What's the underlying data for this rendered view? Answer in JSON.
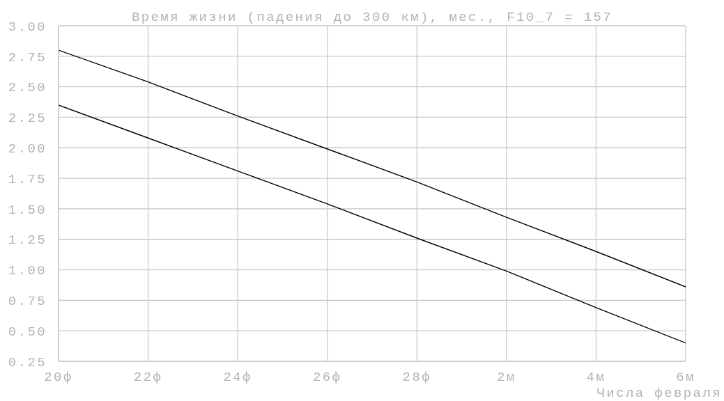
{
  "chart_data": {
    "type": "line",
    "title": "Время жизни (падения до 300 км), мес., F10_7 = 157",
    "xlabel": "Числа февраля",
    "categories": [
      "20ф",
      "22ф",
      "24ф",
      "26ф",
      "28ф",
      "2м",
      "4м",
      "6м"
    ],
    "series": [
      {
        "color": "#000000",
        "values": [
          2.8,
          2.54,
          2.26,
          1.99,
          1.72,
          1.43,
          1.15,
          0.86
        ]
      },
      {
        "color": "#000000",
        "values": [
          2.35,
          2.08,
          1.81,
          1.54,
          1.26,
          0.99,
          0.69,
          0.4
        ]
      }
    ],
    "ylim": [
      0.25,
      3.0
    ],
    "yticks": [
      0.25,
      {
        "value": 0.5,
        "label": "0.50"
      },
      0.75,
      {
        "value": 1,
        "label": "1.00"
      },
      1.25,
      {
        "value": 1.5,
        "label": "1.50"
      },
      1.75,
      {
        "value": 2,
        "label": "2.00"
      },
      2.25,
      {
        "value": 2.5,
        "label": "2.50"
      },
      2.75,
      {
        "value": 3,
        "label": "3.00"
      }
    ],
    "grid": true,
    "line_style": "solid"
  }
}
